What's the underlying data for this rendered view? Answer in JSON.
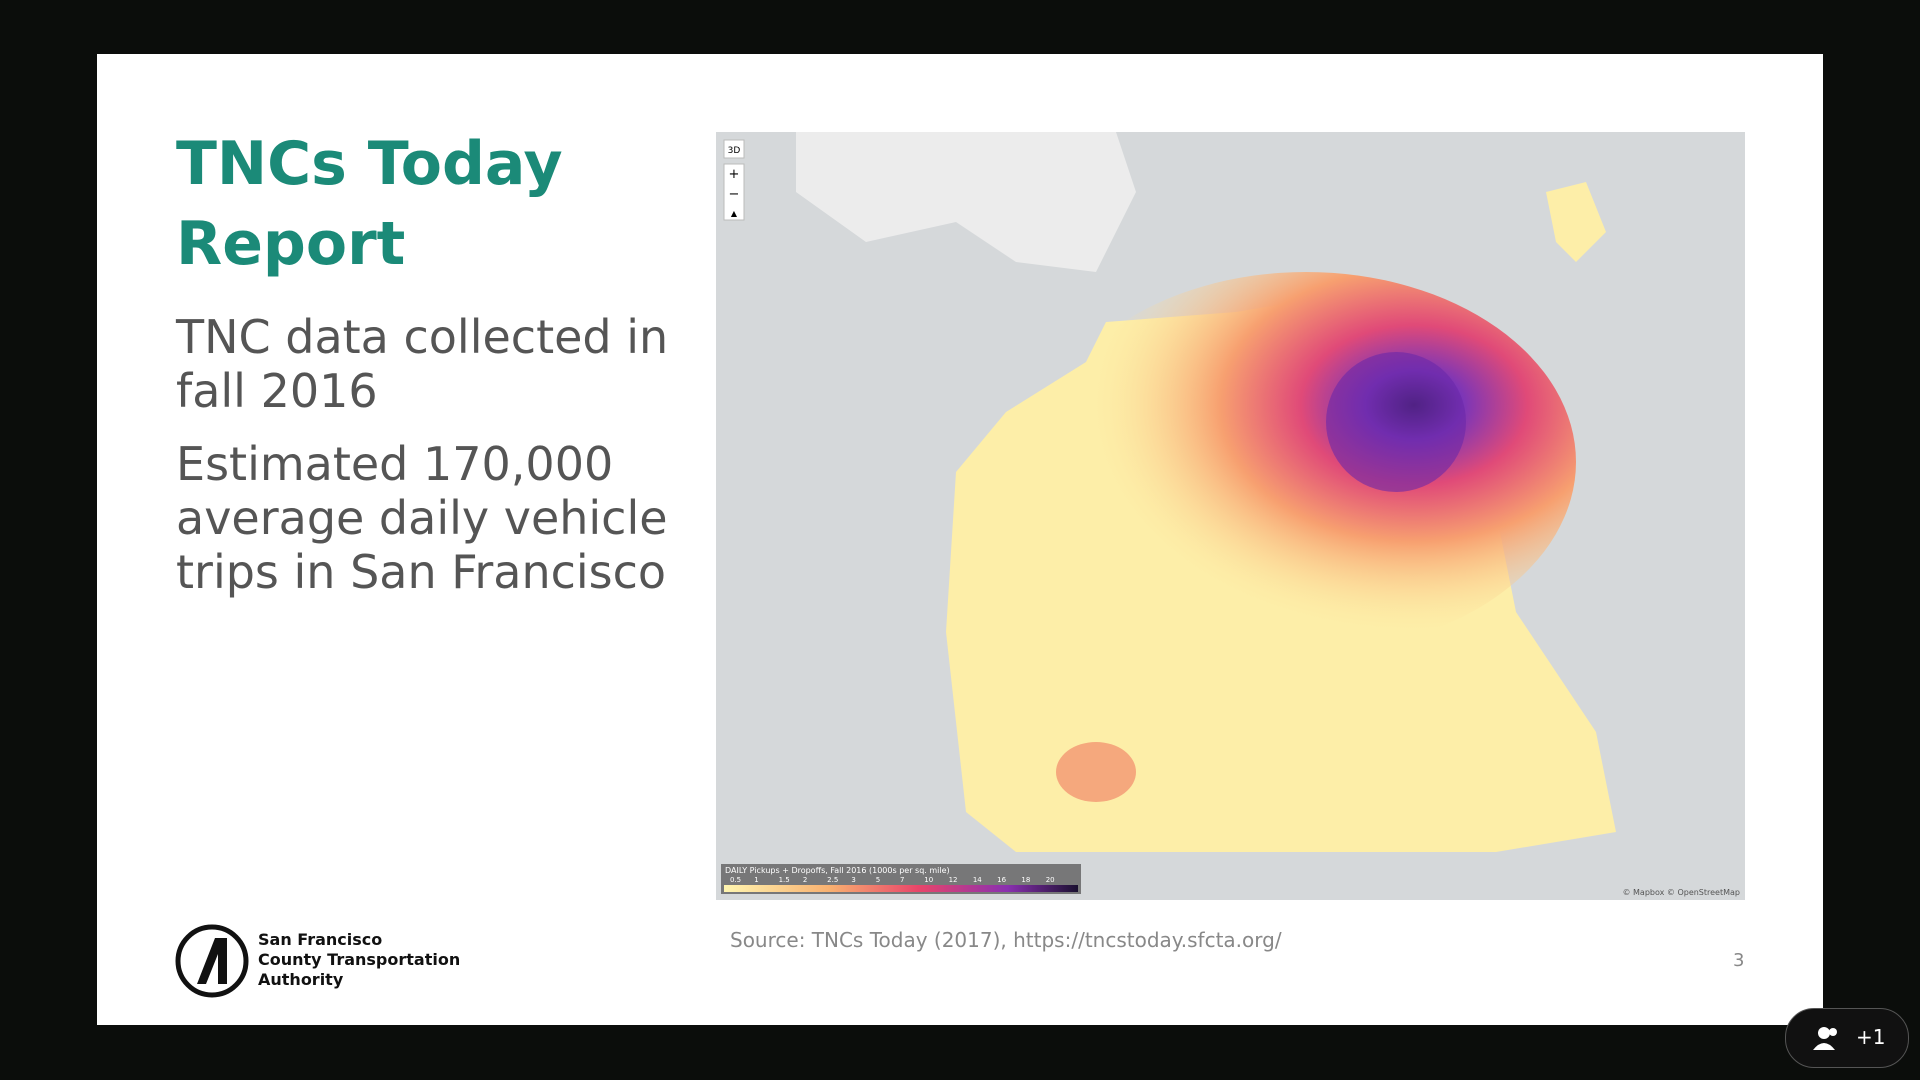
{
  "slide": {
    "title": "TNCs Today Report",
    "bullets": [
      "TNC data collected in fall 2016",
      "Estimated 170,000 average daily vehicle trips in San Francisco"
    ],
    "source": "Source: TNCs Today (2017), https://tncstoday.sfcta.org/",
    "page_number": "3",
    "logo": [
      "San Francisco",
      "County Transportation",
      "Authority"
    ],
    "map": {
      "controls": [
        "3D",
        "+",
        "−",
        "▲"
      ],
      "legend_title": "DAILY Pickups + Dropoffs, Fall 2016 (1000s per sq. mile)",
      "legend_ticks": [
        "0.5",
        "1",
        "1.5",
        "2",
        "2.5",
        "3",
        "5",
        "7",
        "10",
        "12",
        "14",
        "16",
        "18",
        "20"
      ],
      "attribution": "© Mapbox © OpenStreetMap"
    }
  },
  "call": {
    "participants_badge": "+1"
  }
}
